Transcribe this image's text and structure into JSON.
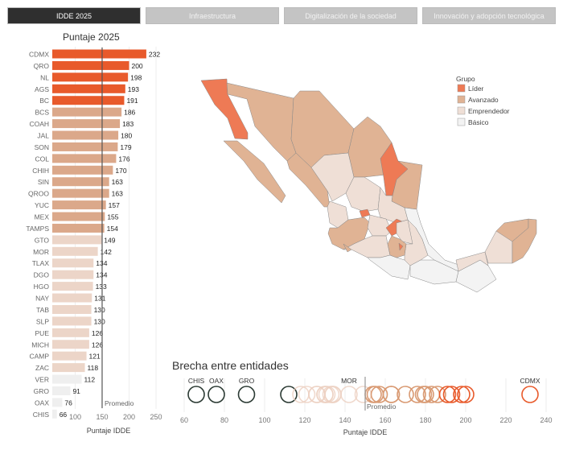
{
  "tabs": [
    {
      "label": "IDDE 2025",
      "active": true
    },
    {
      "label": "Infraestructura"
    },
    {
      "label": "Digitalización de la sociedad"
    },
    {
      "label": "Innovación y adopción tecnológica"
    }
  ],
  "colors": {
    "Líder": "#e85a2b",
    "Avanzado": "#dba88a",
    "Emprendedor": "#ecd5c8",
    "Básico": "#efefef",
    "map_lider": "#ee7a55",
    "map_avanzado": "#e0b394",
    "map_emprendedor": "#efdfd6",
    "map_basico": "#f3f3f3",
    "dot_basico": "#2b3a33"
  },
  "chart_data": [
    {
      "type": "bar",
      "orientation": "horizontal",
      "title": "Puntaje 2025",
      "xlabel": "Puntaje IDDE",
      "xticks": [
        100,
        150,
        200,
        250
      ],
      "reference_line": {
        "value": 150,
        "label": "Promedio"
      },
      "categories": [
        "CDMX",
        "QRO",
        "NL",
        "AGS",
        "BC",
        "BCS",
        "COAH",
        "JAL",
        "SON",
        "COL",
        "CHIH",
        "SIN",
        "QROO",
        "YUC",
        "MEX",
        "TAMPS",
        "GTO",
        "MOR",
        "TLAX",
        "DGO",
        "HGO",
        "NAY",
        "TAB",
        "SLP",
        "PUE",
        "MICH",
        "CAMP",
        "ZAC",
        "VER",
        "GRO",
        "OAX",
        "CHIS"
      ],
      "values": [
        232,
        200,
        198,
        193,
        191,
        186,
        183,
        180,
        179,
        176,
        170,
        163,
        163,
        157,
        155,
        154,
        149,
        142,
        134,
        134,
        133,
        131,
        130,
        130,
        126,
        126,
        121,
        118,
        112,
        91,
        76,
        66
      ],
      "groups": [
        "Líder",
        "Líder",
        "Líder",
        "Líder",
        "Líder",
        "Avanzado",
        "Avanzado",
        "Avanzado",
        "Avanzado",
        "Avanzado",
        "Avanzado",
        "Avanzado",
        "Avanzado",
        "Avanzado",
        "Avanzado",
        "Avanzado",
        "Emprendedor",
        "Emprendedor",
        "Emprendedor",
        "Emprendedor",
        "Emprendedor",
        "Emprendedor",
        "Emprendedor",
        "Emprendedor",
        "Emprendedor",
        "Emprendedor",
        "Emprendedor",
        "Emprendedor",
        "Básico",
        "Básico",
        "Básico",
        "Básico"
      ]
    },
    {
      "type": "scatter",
      "title": "Brecha entre entidades",
      "xlabel": "Puntaje IDDE",
      "xlim": [
        60,
        240
      ],
      "xticks": [
        60,
        80,
        100,
        120,
        140,
        160,
        180,
        200,
        220,
        240
      ],
      "reference_line": {
        "value": 150,
        "label": "Promedio"
      },
      "labeled_points": [
        "CHIS",
        "OAX",
        "GRO",
        "MOR",
        "CDMX"
      ]
    }
  ],
  "map": {
    "legend_title": "Grupo",
    "legend": [
      "Líder",
      "Avanzado",
      "Emprendedor",
      "Básico"
    ]
  }
}
